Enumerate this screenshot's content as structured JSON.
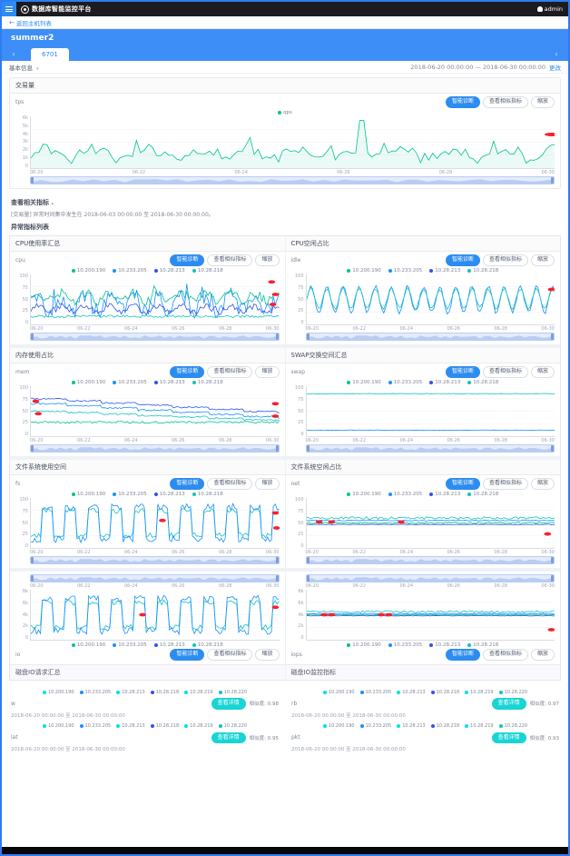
{
  "navbar": {
    "title": "数据库智能监控平台",
    "user": "admin"
  },
  "breadcrumb": {
    "back": "返回主机列表"
  },
  "hero": {
    "title": "summer2",
    "tab": "6701",
    "prev": "‹",
    "next": "›"
  },
  "info": {
    "basic": "基本信息",
    "caret": "▾",
    "range": "2018-06-20 00:00:00 — 2018-06-30 00:00:00",
    "change": "更改"
  },
  "buttons": {
    "diagnose": "智能诊断",
    "similar": "查看相似指标",
    "zoom": "缩放",
    "detail": "查看详情"
  },
  "section": {
    "title": "查看相关指标",
    "caret": "▴",
    "desc": "[交易量] 异常时间集中发生在 2018-06-03 00:00:00 至 2018-06-30 00:00:00。",
    "list_label": "异常指标列表"
  },
  "xlabels": [
    "06-20",
    "06-22",
    "06-24",
    "06-26",
    "06-28",
    "06-30"
  ],
  "grid_ylabels": [
    "100",
    "75",
    "50",
    "25",
    "0"
  ],
  "mirror_ylabels": [
    "8k",
    "6k",
    "4k",
    "2k",
    "0"
  ],
  "host_legend": [
    [
      "10.200.190",
      "#00c292"
    ],
    [
      "10.233.205",
      "#1890ff"
    ],
    [
      "10.28.213",
      "#2f54eb"
    ],
    [
      "10.28.218",
      "#13c2c2"
    ]
  ],
  "bottom_legend": [
    [
      "10.200.190",
      "#00e0e0"
    ],
    [
      "10.233.205",
      "#1890ff"
    ],
    [
      "10.28.213",
      "#00e0e0"
    ],
    [
      "10.28.218",
      "#2f54eb"
    ],
    [
      "10.28.219",
      "#00e0e0"
    ],
    [
      "10.28.220",
      "#13c2c2"
    ]
  ],
  "main_panel": {
    "title": "交易量",
    "metric": "tps",
    "ylabels": [
      "6k",
      "5k",
      "4k",
      "3k",
      "2k",
      "1k",
      "0"
    ],
    "legend": [
      [
        "qps",
        "#00c292"
      ]
    ],
    "series": [
      {
        "color": "#00c292",
        "pattern": "noisy",
        "base": 0.28,
        "amp": 0.16,
        "seed": 2,
        "spike": {
          "x": 0.635,
          "v": 0.92
        },
        "fill": true
      }
    ],
    "red": [
      [
        0.995,
        0.35
      ]
    ]
  },
  "grid_panels": [
    {
      "title": "CPU使用率汇总",
      "metric": "cpu",
      "series": [
        {
          "color": "#00c292",
          "pattern": "noisy",
          "base": 0.55,
          "amp": 0.14,
          "seed": 11
        },
        {
          "color": "#1890ff",
          "pattern": "noisy",
          "base": 0.42,
          "amp": 0.26,
          "seed": 22
        },
        {
          "color": "#2f54eb",
          "pattern": "noisy",
          "base": 0.3,
          "amp": 0.1,
          "seed": 33
        },
        {
          "color": "#13c2c2",
          "pattern": "flat",
          "base": 0.16,
          "amp": 0.05,
          "seed": 44
        }
      ],
      "red": [
        [
          0.97,
          0.15
        ],
        [
          0.985,
          0.4
        ],
        [
          0.975,
          0.6
        ]
      ]
    },
    {
      "title": "CPU空闲占比",
      "metric": "idle",
      "series": [
        {
          "color": "#1890ff",
          "pattern": "wave",
          "base": 0.5,
          "amp": 0.26,
          "seed": 5
        },
        {
          "color": "#13c2c2",
          "pattern": "wave",
          "base": 0.52,
          "amp": 0.2,
          "seed": 9
        }
      ],
      "red": [
        [
          0.985,
          0.3
        ]
      ]
    },
    {
      "title": "内存使用占比",
      "metric": "mem",
      "series": [
        {
          "color": "#1890ff",
          "pattern": "decline",
          "base": 0.35,
          "amp": 0.3,
          "seed": 7
        },
        {
          "color": "#2f54eb",
          "pattern": "decline",
          "base": 0.45,
          "amp": 0.3,
          "seed": 8
        },
        {
          "color": "#13c2c2",
          "pattern": "decline",
          "base": 0.3,
          "amp": 0.2,
          "seed": 9
        },
        {
          "color": "#00c292",
          "pattern": "flat",
          "base": 0.28,
          "amp": 0.04,
          "seed": 10
        }
      ],
      "red": [
        [
          0.02,
          0.3
        ],
        [
          0.03,
          0.55
        ],
        [
          0.985,
          0.35
        ],
        [
          0.985,
          0.6
        ]
      ]
    },
    {
      "title": "SWAP交换空间汇总",
      "metric": "swap",
      "series": [
        {
          "color": "#13c2c2",
          "pattern": "flat",
          "base": 0.85,
          "amp": 0.01,
          "seed": 3
        },
        {
          "color": "#1890ff",
          "pattern": "flat",
          "base": 0.12,
          "amp": 0.01,
          "seed": 4
        }
      ],
      "red": []
    },
    {
      "title": "文件系统使用空间",
      "metric": "fs",
      "series": [
        {
          "color": "#13c2c2",
          "pattern": "square",
          "base": 0.5,
          "amp": 0.26,
          "seed": 13
        },
        {
          "color": "#1890ff",
          "pattern": "square",
          "base": 0.5,
          "amp": 0.34,
          "seed": 14
        }
      ],
      "red": [
        [
          0.53,
          0.45
        ],
        [
          0.985,
          0.3
        ],
        [
          0.99,
          0.6
        ]
      ]
    },
    {
      "title": "文件系统空闲占比",
      "metric": "net",
      "series": [
        {
          "color": "#00c292",
          "pattern": "flat",
          "base": 0.5,
          "amp": 0.03,
          "seed": 15
        },
        {
          "color": "#1890ff",
          "pattern": "flat",
          "base": 0.55,
          "amp": 0.02,
          "seed": 16
        },
        {
          "color": "#2f54eb",
          "pattern": "flat",
          "base": 0.47,
          "amp": 0.01,
          "seed": 17
        },
        {
          "color": "#13c2c2",
          "pattern": "flat",
          "base": 0.6,
          "amp": 0.05,
          "seed": 18
        }
      ],
      "red": [
        [
          0.05,
          0.48
        ],
        [
          0.1,
          0.48
        ],
        [
          0.38,
          0.48
        ],
        [
          0.97,
          0.72
        ]
      ]
    }
  ],
  "mirror_panels": [
    {
      "footer_title": "磁盘IO请求汇总",
      "metric": "io",
      "series": [
        {
          "color": "#13c2c2",
          "pattern": "square",
          "base": 0.5,
          "amp": 0.26,
          "seed": 61
        },
        {
          "color": "#1890ff",
          "pattern": "square",
          "base": 0.5,
          "amp": 0.34,
          "seed": 62
        }
      ],
      "red": [
        [
          0.45,
          0.5
        ],
        [
          0.985,
          0.35
        ]
      ]
    },
    {
      "footer_title": "磁盘IO监控指标",
      "metric": "iops",
      "series": [
        {
          "color": "#00c292",
          "pattern": "flat",
          "base": 0.5,
          "amp": 0.02,
          "seed": 63
        },
        {
          "color": "#1890ff",
          "pattern": "flat",
          "base": 0.52,
          "amp": 0.02,
          "seed": 64
        },
        {
          "color": "#2f54eb",
          "pattern": "flat",
          "base": 0.48,
          "amp": 0.01,
          "seed": 65
        },
        {
          "color": "#13c2c2",
          "pattern": "flat",
          "base": 0.56,
          "amp": 0.04,
          "seed": 66
        }
      ],
      "red": [
        [
          0.07,
          0.5
        ],
        [
          0.1,
          0.5
        ],
        [
          0.3,
          0.5
        ],
        [
          0.33,
          0.5
        ],
        [
          0.985,
          0.8
        ]
      ]
    }
  ],
  "bottom_cards": [
    {
      "metric": "w",
      "similarity": "相似度: 0.98",
      "caption": "2018-06-20 00:00:00 至 2018-06-30 00:00:00",
      "series": [
        {
          "color": "#00e0e0",
          "pattern": "steps",
          "base": 0.55,
          "amp": 0.22,
          "seed": 21
        },
        {
          "color": "#00e0e0",
          "pattern": "steps",
          "base": 0.38,
          "amp": 0.18,
          "seed": 22
        },
        {
          "color": "#1f3de0",
          "pattern": "steps",
          "base": 0.15,
          "amp": 0.42,
          "seed": 23
        },
        {
          "color": "#00e0e0",
          "pattern": "flat",
          "base": 0.32,
          "amp": 0.04,
          "seed": 24
        }
      ],
      "red": [
        [
          0.17,
          0.3
        ],
        [
          0.17,
          0.45
        ],
        [
          0.17,
          0.58
        ],
        [
          0.995,
          0.3
        ],
        [
          0.995,
          0.48
        ],
        [
          0.995,
          0.6
        ]
      ]
    },
    {
      "metric": "rb",
      "similarity": "相似度: 0.97",
      "caption": "2018-06-20 00:00:00 至 2018-06-30 00:00:00",
      "series": [
        {
          "color": "#00e0e0",
          "pattern": "scatter",
          "base": 0.5,
          "amp": 0.35,
          "seed": 31
        },
        {
          "color": "#00e0e0",
          "pattern": "flat",
          "base": 0.2,
          "amp": 0.02,
          "seed": 32
        },
        {
          "color": "#1f3de0",
          "pattern": "flat",
          "base": 0.24,
          "amp": 0.01,
          "seed": 33
        }
      ],
      "red": []
    },
    {
      "metric": "lat",
      "similarity": "相似度: 0.95",
      "caption": "2018-06-20 00:00:00 至 2018-06-30 00:00:00",
      "series": [
        {
          "color": "#00e0e0",
          "pattern": "band",
          "base": 0.55,
          "amp": 0.26,
          "seed": 41
        },
        {
          "color": "#1f3de0",
          "pattern": "band",
          "base": 0.5,
          "amp": 0.12,
          "seed": 42
        }
      ],
      "red": [
        [
          0.97,
          0.85
        ]
      ]
    },
    {
      "metric": "pkt",
      "similarity": "相似度: 0.93",
      "caption": "2018-06-20 00:00:00 至 2018-06-30 00:00:00",
      "series": [
        {
          "color": "#00e0e0",
          "pattern": "zigzag",
          "base": 0.5,
          "amp": 0.2,
          "seed": 51
        }
      ],
      "red": [
        [
          0.99,
          0.3
        ]
      ]
    }
  ]
}
